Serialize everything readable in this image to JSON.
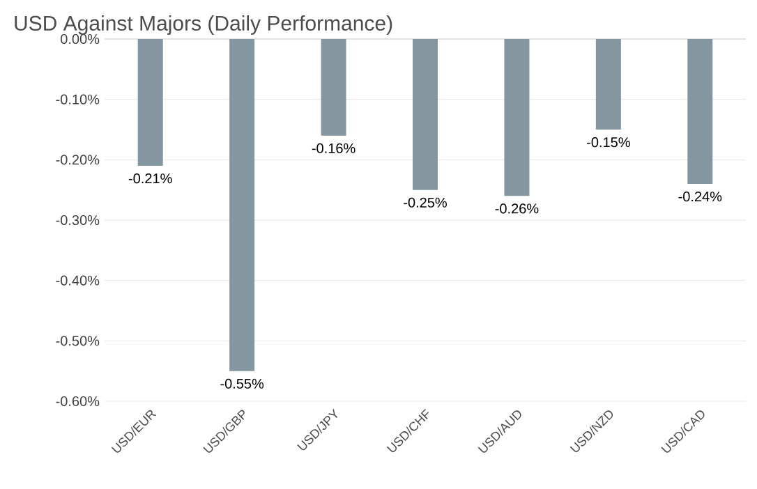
{
  "chart_data": {
    "type": "bar",
    "title": "USD Against Majors (Daily Performance)",
    "categories": [
      "USD/EUR",
      "USD/GBP",
      "USD/JPY",
      "USD/CHF",
      "USD/AUD",
      "USD/NZD",
      "USD/CAD"
    ],
    "values": [
      -0.21,
      -0.55,
      -0.16,
      -0.25,
      -0.26,
      -0.15,
      -0.24
    ],
    "value_labels": [
      "-0.21%",
      "-0.55%",
      "-0.16%",
      "-0.25%",
      "-0.26%",
      "-0.15%",
      "-0.24%"
    ],
    "color": "#8497a0",
    "ylim": [
      -0.6,
      0
    ],
    "yticks": [
      {
        "value": 0,
        "label": "0.00%"
      },
      {
        "value": -0.1,
        "label": "-0.10%"
      },
      {
        "value": -0.2,
        "label": "-0.20%"
      },
      {
        "value": -0.3,
        "label": "-0.30%"
      },
      {
        "value": -0.4,
        "label": "-0.40%"
      },
      {
        "value": -0.5,
        "label": "-0.50%"
      },
      {
        "value": -0.6,
        "label": "-0.60%"
      }
    ],
    "grid": "y"
  }
}
